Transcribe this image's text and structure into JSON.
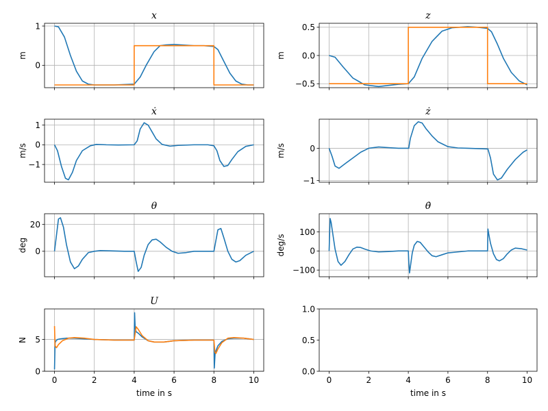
{
  "chart_data": [
    {
      "id": "x",
      "type": "line",
      "title": "x",
      "ylabel": "m",
      "xlabel": "",
      "xlim": [
        -0.5,
        10.5
      ],
      "ylim": [
        -0.57,
        1.07
      ],
      "xticks": [
        0,
        2,
        4,
        6,
        8,
        10
      ],
      "xtick_labels_visible": false,
      "yticks": [
        0,
        1
      ],
      "ytick_labels": [
        "0",
        "1"
      ],
      "grid": true,
      "series": [
        {
          "color": "#1f77b4",
          "x": [
            0,
            0.2,
            0.5,
            0.8,
            1.1,
            1.4,
            1.7,
            2,
            3,
            4,
            4.3,
            4.6,
            5,
            5.3,
            5.6,
            6,
            7,
            7.5,
            8,
            8.2,
            8.5,
            8.8,
            9.1,
            9.4,
            9.7,
            10
          ],
          "y": [
            1.0,
            0.98,
            0.72,
            0.25,
            -0.15,
            -0.4,
            -0.48,
            -0.5,
            -0.5,
            -0.48,
            -0.3,
            0.0,
            0.35,
            0.5,
            0.52,
            0.53,
            0.5,
            0.5,
            0.48,
            0.4,
            0.1,
            -0.2,
            -0.4,
            -0.48,
            -0.5,
            -0.5
          ]
        },
        {
          "color": "#ff7f0e",
          "x": [
            0,
            4,
            4,
            8,
            8,
            10
          ],
          "y": [
            -0.5,
            -0.5,
            0.5,
            0.5,
            -0.5,
            -0.5
          ]
        }
      ]
    },
    {
      "id": "z",
      "type": "line",
      "title": "z",
      "ylabel": "m",
      "xlabel": "",
      "xlim": [
        -0.5,
        10.5
      ],
      "ylim": [
        -0.57,
        0.57
      ],
      "xticks": [
        0,
        2,
        4,
        6,
        8,
        10
      ],
      "xtick_labels_visible": false,
      "yticks": [
        -0.5,
        0,
        0.5
      ],
      "ytick_labels": [
        "−0.5",
        "0.0",
        "0.5"
      ],
      "grid": true,
      "series": [
        {
          "color": "#1f77b4",
          "x": [
            0,
            0.3,
            0.7,
            1.2,
            1.8,
            2.5,
            3,
            3.5,
            4,
            4.3,
            4.7,
            5.2,
            5.7,
            6.2,
            7,
            7.5,
            8,
            8.2,
            8.5,
            8.8,
            9.2,
            9.6,
            10
          ],
          "y": [
            0.0,
            -0.03,
            -0.2,
            -0.4,
            -0.52,
            -0.55,
            -0.53,
            -0.51,
            -0.5,
            -0.38,
            -0.05,
            0.25,
            0.43,
            0.49,
            0.51,
            0.5,
            0.48,
            0.42,
            0.2,
            -0.05,
            -0.3,
            -0.45,
            -0.52
          ]
        },
        {
          "color": "#ff7f0e",
          "x": [
            0,
            4,
            4,
            8,
            8,
            10
          ],
          "y": [
            -0.5,
            -0.5,
            0.5,
            0.5,
            -0.5,
            -0.5
          ]
        }
      ]
    },
    {
      "id": "xdot",
      "type": "line",
      "title": "ẋ",
      "ylabel": "m/s",
      "xlabel": "",
      "xlim": [
        -0.5,
        10.5
      ],
      "ylim": [
        -1.9,
        1.3
      ],
      "xticks": [
        0,
        2,
        4,
        6,
        8,
        10
      ],
      "xtick_labels_visible": false,
      "yticks": [
        -1,
        0,
        1
      ],
      "ytick_labels": [
        "−1",
        "0",
        "1"
      ],
      "grid": true,
      "series": [
        {
          "color": "#1f77b4",
          "x": [
            0,
            0.15,
            0.35,
            0.55,
            0.7,
            0.9,
            1.1,
            1.4,
            1.8,
            2.1,
            2.6,
            3.2,
            4,
            4.15,
            4.3,
            4.5,
            4.7,
            4.9,
            5.1,
            5.4,
            5.8,
            6.2,
            7,
            7.7,
            8,
            8.15,
            8.3,
            8.5,
            8.7,
            8.9,
            9.2,
            9.6,
            10
          ],
          "y": [
            0.0,
            -0.3,
            -1.1,
            -1.7,
            -1.78,
            -1.4,
            -0.8,
            -0.3,
            -0.05,
            0.02,
            0.0,
            -0.01,
            0.0,
            0.2,
            0.8,
            1.12,
            1.0,
            0.65,
            0.3,
            0.02,
            -0.07,
            -0.03,
            0.0,
            0.0,
            -0.05,
            -0.3,
            -0.8,
            -1.1,
            -1.05,
            -0.75,
            -0.35,
            -0.08,
            0.0
          ]
        }
      ]
    },
    {
      "id": "zdot",
      "type": "line",
      "title": "ż",
      "ylabel": "m/s",
      "xlabel": "",
      "xlim": [
        -0.5,
        10.5
      ],
      "ylim": [
        -1.05,
        0.9
      ],
      "xticks": [
        0,
        2,
        4,
        6,
        8,
        10
      ],
      "xtick_labels_visible": false,
      "yticks": [
        -1,
        0
      ],
      "ytick_labels": [
        "−1",
        "0"
      ],
      "grid": true,
      "series": [
        {
          "color": "#1f77b4",
          "x": [
            0,
            0.15,
            0.3,
            0.5,
            0.8,
            1.2,
            1.6,
            2,
            2.5,
            3,
            3.5,
            4,
            4.02,
            4.1,
            4.3,
            4.5,
            4.7,
            4.9,
            5.2,
            5.5,
            6,
            6.5,
            7,
            8,
            8.02,
            8.15,
            8.3,
            8.5,
            8.7,
            9,
            9.4,
            9.8,
            10
          ],
          "y": [
            0.0,
            -0.25,
            -0.55,
            -0.62,
            -0.48,
            -0.3,
            -0.12,
            0.0,
            0.04,
            0.02,
            0.0,
            0.0,
            0.0,
            0.3,
            0.7,
            0.82,
            0.78,
            0.6,
            0.38,
            0.2,
            0.05,
            0.01,
            0.0,
            -0.02,
            -0.02,
            -0.3,
            -0.8,
            -0.98,
            -0.92,
            -0.65,
            -0.35,
            -0.12,
            -0.05
          ]
        }
      ]
    },
    {
      "id": "theta",
      "type": "line",
      "title": "θ",
      "ylabel": "deg",
      "xlabel": "",
      "xlim": [
        -0.5,
        10.5
      ],
      "ylim": [
        -19,
        28
      ],
      "xticks": [
        0,
        2,
        4,
        6,
        8,
        10
      ],
      "xtick_labels_visible": false,
      "yticks": [
        0,
        20
      ],
      "ytick_labels": [
        "0",
        "20"
      ],
      "grid": true,
      "series": [
        {
          "color": "#1f77b4",
          "x": [
            0,
            0.1,
            0.2,
            0.3,
            0.45,
            0.6,
            0.8,
            1,
            1.2,
            1.4,
            1.7,
            2,
            2.3,
            2.8,
            3.5,
            4,
            4.1,
            4.2,
            4.35,
            4.5,
            4.7,
            4.9,
            5.1,
            5.3,
            5.6,
            5.9,
            6.2,
            6.6,
            7,
            7.5,
            8,
            8.1,
            8.2,
            8.35,
            8.5,
            8.7,
            8.9,
            9.1,
            9.3,
            9.6,
            10
          ],
          "y": [
            0,
            12,
            24,
            25,
            18,
            5,
            -8,
            -13,
            -11,
            -6,
            -1,
            0,
            0.5,
            0.3,
            0,
            0,
            -8,
            -15,
            -12,
            -3,
            5,
            8.5,
            9,
            7,
            3,
            0,
            -1.5,
            -1,
            0,
            0,
            0,
            8,
            16,
            17,
            10,
            0,
            -6,
            -8,
            -7,
            -3,
            0
          ]
        }
      ]
    },
    {
      "id": "thetadot",
      "type": "line",
      "title": "θ̇",
      "ylabel": "deg/s",
      "xlabel": "",
      "xlim": [
        -0.5,
        10.5
      ],
      "ylim": [
        -135,
        195
      ],
      "xticks": [
        0,
        2,
        4,
        6,
        8,
        10
      ],
      "xtick_labels_visible": false,
      "yticks": [
        -100,
        0,
        100
      ],
      "ytick_labels": [
        "−100",
        "0",
        "100"
      ],
      "grid": true,
      "series": [
        {
          "color": "#1f77b4",
          "x": [
            0,
            0.05,
            0.1,
            0.2,
            0.3,
            0.45,
            0.6,
            0.8,
            1,
            1.2,
            1.4,
            1.6,
            1.8,
            2.1,
            2.5,
            3,
            3.5,
            4,
            4.02,
            4.06,
            4.12,
            4.2,
            4.3,
            4.45,
            4.6,
            4.8,
            5,
            5.2,
            5.4,
            5.7,
            6,
            6.5,
            7,
            7.5,
            8,
            8.02,
            8.06,
            8.15,
            8.3,
            8.45,
            8.6,
            8.8,
            9,
            9.2,
            9.4,
            9.7,
            10
          ],
          "y": [
            0,
            170,
            150,
            80,
            10,
            -55,
            -75,
            -55,
            -20,
            10,
            20,
            18,
            10,
            0,
            -5,
            -3,
            0,
            0,
            -50,
            -115,
            -70,
            -10,
            30,
            50,
            45,
            20,
            -5,
            -25,
            -30,
            -20,
            -10,
            -5,
            0,
            0,
            0,
            115,
            90,
            40,
            -15,
            -45,
            -52,
            -40,
            -15,
            5,
            15,
            12,
            5
          ]
        }
      ]
    },
    {
      "id": "U",
      "type": "line",
      "title": "U",
      "ylabel": "N",
      "xlabel": "time in s",
      "xlim": [
        -0.5,
        10.5
      ],
      "ylim": [
        0,
        9.8
      ],
      "xticks": [
        0,
        2,
        4,
        6,
        8,
        10
      ],
      "xtick_labels_visible": true,
      "xtick_labels": [
        "0",
        "2",
        "4",
        "6",
        "8",
        "10"
      ],
      "yticks": [
        0,
        5
      ],
      "ytick_labels": [
        "0",
        "5"
      ],
      "grid": true,
      "series": [
        {
          "color": "#1f77b4",
          "x": [
            0,
            0.03,
            0.08,
            0.15,
            0.3,
            0.6,
            1,
            1.5,
            2,
            3,
            4,
            4.02,
            4.05,
            4.1,
            4.2,
            4.4,
            4.7,
            5,
            5.5,
            6,
            7,
            8,
            8.02,
            8.06,
            8.1,
            8.2,
            8.4,
            8.7,
            9,
            9.5,
            10
          ],
          "y": [
            0.3,
            4.5,
            4.8,
            5.0,
            5.1,
            5.2,
            5.2,
            5.1,
            5.0,
            4.9,
            4.9,
            9.2,
            6.8,
            6.2,
            6.0,
            5.4,
            4.8,
            4.6,
            4.6,
            4.8,
            4.9,
            4.9,
            0.5,
            2.8,
            3.2,
            4.0,
            4.7,
            5.1,
            5.2,
            5.2,
            5.0
          ]
        },
        {
          "color": "#ff7f0e",
          "x": [
            0,
            0.03,
            0.1,
            0.2,
            0.4,
            0.7,
            1,
            1.5,
            2,
            3,
            4,
            4.05,
            4.1,
            4.2,
            4.4,
            4.7,
            5,
            5.5,
            6,
            7,
            8,
            8.05,
            8.1,
            8.2,
            8.4,
            8.7,
            9,
            9.5,
            10
          ],
          "y": [
            7.1,
            4.0,
            3.7,
            4.2,
            4.8,
            5.2,
            5.3,
            5.2,
            5.0,
            4.9,
            4.9,
            6.0,
            7.0,
            6.6,
            5.6,
            4.8,
            4.6,
            4.6,
            4.8,
            4.9,
            4.9,
            3.0,
            2.8,
            3.5,
            4.5,
            5.2,
            5.3,
            5.2,
            5.0
          ]
        }
      ]
    },
    {
      "id": "empty",
      "type": "line",
      "title": "",
      "ylabel": "",
      "xlabel": "time in s",
      "xlim": [
        -0.5,
        10.5
      ],
      "ylim": [
        0,
        1
      ],
      "xticks": [
        0,
        2,
        4,
        6,
        8,
        10
      ],
      "xtick_labels_visible": true,
      "xtick_labels": [
        "0",
        "2",
        "4",
        "6",
        "8",
        "10"
      ],
      "yticks": [
        0,
        0.5,
        1
      ],
      "ytick_labels": [
        "0.0",
        "0.5",
        "1.0"
      ],
      "grid": false,
      "series": []
    }
  ]
}
